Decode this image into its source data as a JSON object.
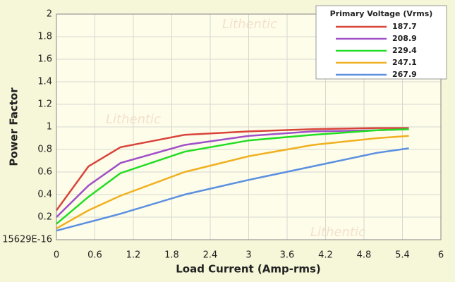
{
  "chart_data": {
    "type": "line",
    "y_label": "Power Factor",
    "x_label": "Load Current (Amp-rms)",
    "legend_title": "Primary Voltage (Vrms)",
    "legend_position": "upper right",
    "watermark": "Lithentic",
    "x": [
      0,
      0.5,
      1,
      2,
      3,
      4,
      5,
      5.5
    ],
    "series": [
      {
        "name": "187.7",
        "color": "#d9443a",
        "values": [
          0.26,
          0.65,
          0.82,
          0.93,
          0.96,
          0.98,
          0.99,
          0.99
        ]
      },
      {
        "name": "208.9",
        "color": "#a050c8",
        "values": [
          0.2,
          0.48,
          0.68,
          0.84,
          0.92,
          0.96,
          0.97,
          0.98
        ]
      },
      {
        "name": "229.4",
        "color": "#22dd22",
        "values": [
          0.14,
          0.38,
          0.59,
          0.78,
          0.88,
          0.93,
          0.97,
          0.98
        ]
      },
      {
        "name": "247.1",
        "color": "#f0b020",
        "values": [
          0.1,
          0.26,
          0.39,
          0.6,
          0.74,
          0.84,
          0.9,
          0.92
        ]
      },
      {
        "name": "267.9",
        "color": "#5b8fe0",
        "values": [
          0.08,
          0.155,
          0.23,
          0.4,
          0.53,
          0.65,
          0.77,
          0.81
        ]
      }
    ],
    "xlim": [
      0,
      6
    ],
    "xticks": [
      0,
      0.6,
      1.2,
      1.8,
      2.4,
      3,
      3.6,
      4.2,
      4.8,
      5.4,
      6
    ],
    "ylim": [
      0,
      2
    ],
    "yticks": [
      {
        "value": 0,
        "label": "15629E-16"
      },
      0.2,
      0.4,
      0.6,
      0.8,
      1,
      1.2,
      1.4,
      1.6,
      1.8,
      2
    ],
    "grid": true
  }
}
